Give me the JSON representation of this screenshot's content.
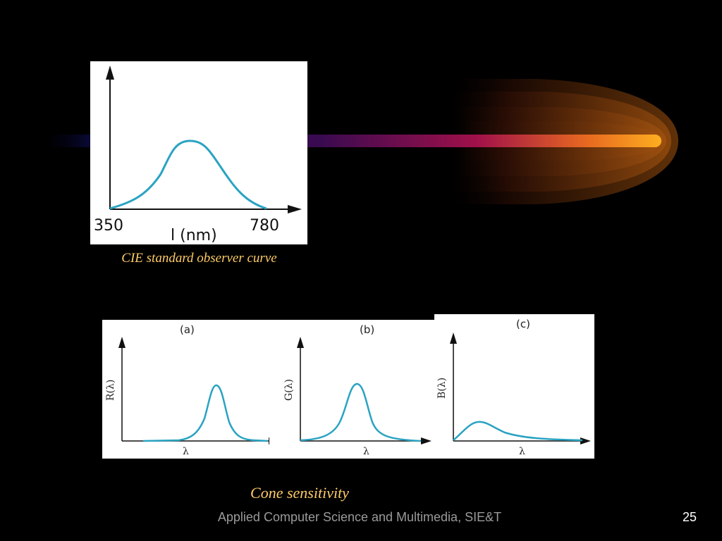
{
  "cie": {
    "x_start": "350",
    "x_end": "780",
    "x_label": "l (nm)",
    "caption": "CIE standard observer curve"
  },
  "cones": [
    {
      "panel_label": "(a)",
      "y_label": "R(λ)",
      "x_label": "λ"
    },
    {
      "panel_label": "(b)",
      "y_label": "G(λ)",
      "x_label": "λ"
    },
    {
      "panel_label": "(c)",
      "y_label": "B(λ)",
      "x_label": "λ"
    }
  ],
  "cone_caption": "Cone sensitivity",
  "footer": "Applied Computer Science and Multimedia, SIE&T",
  "page_number": "25",
  "colors": {
    "curve": "#2aa3c2",
    "caption": "#ffcc66",
    "background": "#000000",
    "footer": "#9a9a9a"
  }
}
